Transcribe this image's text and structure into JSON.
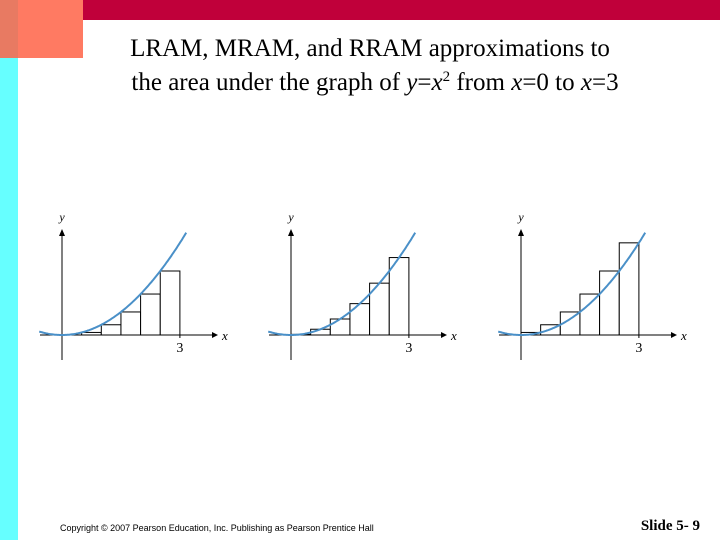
{
  "header": {
    "title": {
      "line1": "LRAM, MRAM, and RRAM approximations to",
      "line2": [
        "the area under the graph of ",
        "y",
        "=",
        "x",
        "2",
        " from ",
        "x",
        "=0 to ",
        "x",
        "=3"
      ]
    }
  },
  "panels": [
    {
      "y_label": "y",
      "x_label": "x",
      "tick_label": "3"
    },
    {
      "y_label": "y",
      "x_label": "x",
      "tick_label": "3"
    },
    {
      "y_label": "y",
      "x_label": "x",
      "tick_label": "3"
    }
  ],
  "footer": {
    "copyright": "Copyright © 2007 Pearson Education, Inc. Publishing as Pearson Prentice Hall",
    "slide": "Slide 5- 9"
  }
}
